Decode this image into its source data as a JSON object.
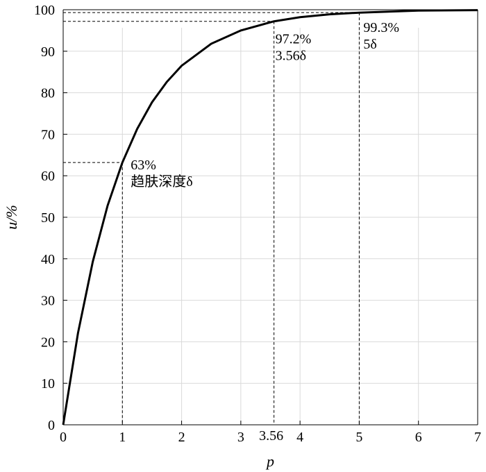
{
  "chart_data": {
    "type": "line",
    "title": "",
    "xlabel": "p",
    "ylabel": "u/%",
    "xlim": [
      0,
      7
    ],
    "ylim": [
      0,
      100
    ],
    "x_ticks": [
      "0",
      "1",
      "2",
      "3",
      "4",
      "5",
      "6",
      "7"
    ],
    "y_ticks": [
      "0",
      "10",
      "20",
      "30",
      "40",
      "50",
      "60",
      "70",
      "80",
      "90",
      "100"
    ],
    "extra_x_tick": "3.56",
    "grid": true,
    "legend": "none",
    "series": [
      {
        "x": [
          0,
          0.25,
          0.5,
          0.75,
          1,
          1.25,
          1.5,
          1.75,
          2,
          2.5,
          3,
          3.56,
          4,
          4.5,
          5,
          6,
          7
        ],
        "y": [
          0,
          22.1,
          39.3,
          52.8,
          63.2,
          71.3,
          77.7,
          82.6,
          86.5,
          91.8,
          95.0,
          97.2,
          98.2,
          98.9,
          99.3,
          99.8,
          99.9
        ],
        "color": "#000000"
      }
    ],
    "annotations": [
      {
        "x": 1,
        "y": 63.2,
        "lines": [
          "63%",
          "趋肤深度δ"
        ]
      },
      {
        "x": 3.56,
        "y": 97.2,
        "lines": [
          "97.2%",
          "3.56δ"
        ]
      },
      {
        "x": 5,
        "y": 99.3,
        "lines": [
          "99.3%",
          "5δ"
        ]
      }
    ]
  }
}
